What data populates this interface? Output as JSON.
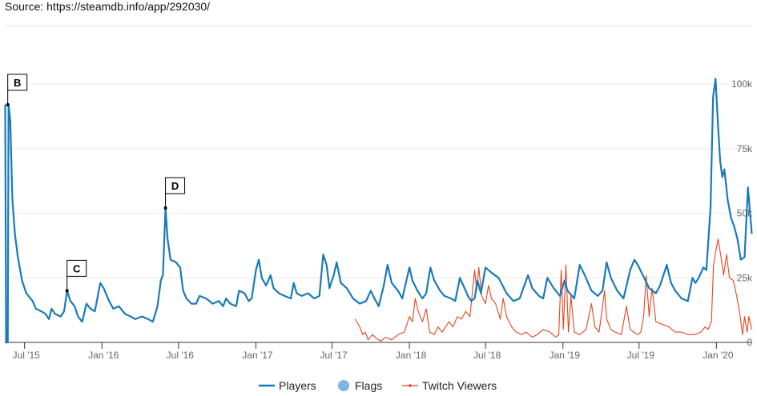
{
  "source": "Source: https://steamdb.info/app/292030/",
  "chart_data": {
    "type": "line",
    "title": "",
    "xlabel": "",
    "ylabel": "",
    "x_ticks": [
      "Jul '15",
      "Jan '16",
      "Jul '16",
      "Jan '17",
      "Jul '17",
      "Jan '18",
      "Jul '18",
      "Jan '19",
      "Jul '19",
      "Jan '20"
    ],
    "y_ticks": [
      "0",
      "25k",
      "50k",
      "75k",
      "100k"
    ],
    "ylim": [
      0,
      100000
    ],
    "grid": "horizontal",
    "legend_position": "bottom",
    "legend": [
      "Players",
      "Flags",
      "Twitch Viewers"
    ],
    "colors": {
      "players": "#1a7ab8",
      "flags": "#7cb5ec",
      "twitch": "#e8431f"
    },
    "flags": [
      {
        "label": "B",
        "x": "2015-05-22",
        "y": 92000
      },
      {
        "label": "C",
        "x": "2015-10-10",
        "y": 20000
      },
      {
        "label": "D",
        "x": "2016-05-31",
        "y": 52000
      }
    ],
    "series": [
      {
        "name": "Players",
        "points": [
          [
            "2015-05-16",
            92000
          ],
          [
            "2015-05-18",
            0
          ],
          [
            "2015-05-22",
            0
          ],
          [
            "2015-05-24",
            92000
          ],
          [
            "2015-05-28",
            86000
          ],
          [
            "2015-06-02",
            55000
          ],
          [
            "2015-06-08",
            42000
          ],
          [
            "2015-06-15",
            33000
          ],
          [
            "2015-06-25",
            24000
          ],
          [
            "2015-07-05",
            19000
          ],
          [
            "2015-07-20",
            16000
          ],
          [
            "2015-07-28",
            13000
          ],
          [
            "2015-08-10",
            12000
          ],
          [
            "2015-08-20",
            11000
          ],
          [
            "2015-08-28",
            9000
          ],
          [
            "2015-09-03",
            13000
          ],
          [
            "2015-09-12",
            11000
          ],
          [
            "2015-09-25",
            10000
          ],
          [
            "2015-10-03",
            12000
          ],
          [
            "2015-10-10",
            20000
          ],
          [
            "2015-10-18",
            16000
          ],
          [
            "2015-10-28",
            14000
          ],
          [
            "2015-11-05",
            10000
          ],
          [
            "2015-11-15",
            8000
          ],
          [
            "2015-11-25",
            15000
          ],
          [
            "2015-12-05",
            13000
          ],
          [
            "2015-12-15",
            12000
          ],
          [
            "2015-12-28",
            23000
          ],
          [
            "2016-01-05",
            21000
          ],
          [
            "2016-01-18",
            16000
          ],
          [
            "2016-01-28",
            13000
          ],
          [
            "2016-02-10",
            14000
          ],
          [
            "2016-02-25",
            11000
          ],
          [
            "2016-03-10",
            10000
          ],
          [
            "2016-03-20",
            9000
          ],
          [
            "2016-04-05",
            10000
          ],
          [
            "2016-04-20",
            9000
          ],
          [
            "2016-05-01",
            8000
          ],
          [
            "2016-05-12",
            14000
          ],
          [
            "2016-05-20",
            24000
          ],
          [
            "2016-05-25",
            26000
          ],
          [
            "2016-05-31",
            52000
          ],
          [
            "2016-06-05",
            40000
          ],
          [
            "2016-06-12",
            32000
          ],
          [
            "2016-06-25",
            31000
          ],
          [
            "2016-07-05",
            29000
          ],
          [
            "2016-07-12",
            20000
          ],
          [
            "2016-07-20",
            17000
          ],
          [
            "2016-08-01",
            15000
          ],
          [
            "2016-08-12",
            15000
          ],
          [
            "2016-08-20",
            18000
          ],
          [
            "2016-09-05",
            17000
          ],
          [
            "2016-09-20",
            15000
          ],
          [
            "2016-10-05",
            16000
          ],
          [
            "2016-10-15",
            14000
          ],
          [
            "2016-10-22",
            17000
          ],
          [
            "2016-11-01",
            15000
          ],
          [
            "2016-11-15",
            14000
          ],
          [
            "2016-11-22",
            20000
          ],
          [
            "2016-12-05",
            19000
          ],
          [
            "2016-12-15",
            16000
          ],
          [
            "2016-12-22",
            17000
          ],
          [
            "2017-01-01",
            28000
          ],
          [
            "2017-01-08",
            32000
          ],
          [
            "2017-01-15",
            25000
          ],
          [
            "2017-01-25",
            22000
          ],
          [
            "2017-02-05",
            26000
          ],
          [
            "2017-02-12",
            21000
          ],
          [
            "2017-02-25",
            19000
          ],
          [
            "2017-03-10",
            18000
          ],
          [
            "2017-03-25",
            17000
          ],
          [
            "2017-04-01",
            23000
          ],
          [
            "2017-04-08",
            19000
          ],
          [
            "2017-04-20",
            18000
          ],
          [
            "2017-05-05",
            19000
          ],
          [
            "2017-05-20",
            17000
          ],
          [
            "2017-06-01",
            18000
          ],
          [
            "2017-06-10",
            34000
          ],
          [
            "2017-06-18",
            30000
          ],
          [
            "2017-06-25",
            21000
          ],
          [
            "2017-07-05",
            26000
          ],
          [
            "2017-07-12",
            31000
          ],
          [
            "2017-07-22",
            23000
          ],
          [
            "2017-08-05",
            21000
          ],
          [
            "2017-08-20",
            17000
          ],
          [
            "2017-09-05",
            15000
          ],
          [
            "2017-09-20",
            16000
          ],
          [
            "2017-10-01",
            20000
          ],
          [
            "2017-10-10",
            17000
          ],
          [
            "2017-10-20",
            14000
          ],
          [
            "2017-11-01",
            22000
          ],
          [
            "2017-11-10",
            30000
          ],
          [
            "2017-11-20",
            23000
          ],
          [
            "2017-12-05",
            20000
          ],
          [
            "2017-12-15",
            17000
          ],
          [
            "2018-01-01",
            29000
          ],
          [
            "2018-01-08",
            24000
          ],
          [
            "2018-01-20",
            20000
          ],
          [
            "2018-02-01",
            17000
          ],
          [
            "2018-02-10",
            19000
          ],
          [
            "2018-02-20",
            29000
          ],
          [
            "2018-03-01",
            24000
          ],
          [
            "2018-03-15",
            20000
          ],
          [
            "2018-03-25",
            18000
          ],
          [
            "2018-04-10",
            17000
          ],
          [
            "2018-04-20",
            16000
          ],
          [
            "2018-05-01",
            25000
          ],
          [
            "2018-05-12",
            21000
          ],
          [
            "2018-05-20",
            18000
          ],
          [
            "2018-05-28",
            16000
          ],
          [
            "2018-06-05",
            17000
          ],
          [
            "2018-06-12",
            24000
          ],
          [
            "2018-06-20",
            19000
          ],
          [
            "2018-07-01",
            29000
          ],
          [
            "2018-07-15",
            27000
          ],
          [
            "2018-08-01",
            25000
          ],
          [
            "2018-08-20",
            19000
          ],
          [
            "2018-09-05",
            16000
          ],
          [
            "2018-09-20",
            17000
          ],
          [
            "2018-10-10",
            26000
          ],
          [
            "2018-10-20",
            21000
          ],
          [
            "2018-11-05",
            18000
          ],
          [
            "2018-11-15",
            17000
          ],
          [
            "2018-11-25",
            25000
          ],
          [
            "2018-12-10",
            21000
          ],
          [
            "2018-12-25",
            18000
          ],
          [
            "2019-01-05",
            24000
          ],
          [
            "2019-01-12",
            20000
          ],
          [
            "2019-01-28",
            17000
          ],
          [
            "2019-02-10",
            30000
          ],
          [
            "2019-02-22",
            26000
          ],
          [
            "2019-03-10",
            20000
          ],
          [
            "2019-03-25",
            18000
          ],
          [
            "2019-04-05",
            20000
          ],
          [
            "2019-04-15",
            31000
          ],
          [
            "2019-04-25",
            25000
          ],
          [
            "2019-05-10",
            20000
          ],
          [
            "2019-05-25",
            17000
          ],
          [
            "2019-06-10",
            28000
          ],
          [
            "2019-06-20",
            32000
          ],
          [
            "2019-06-28",
            30000
          ],
          [
            "2019-07-10",
            26000
          ],
          [
            "2019-07-25",
            21000
          ],
          [
            "2019-08-10",
            19000
          ],
          [
            "2019-08-20",
            22000
          ],
          [
            "2019-09-05",
            30000
          ],
          [
            "2019-09-15",
            23000
          ],
          [
            "2019-09-25",
            20000
          ],
          [
            "2019-10-10",
            17000
          ],
          [
            "2019-10-25",
            16000
          ],
          [
            "2019-11-05",
            25000
          ],
          [
            "2019-11-12",
            23000
          ],
          [
            "2019-11-20",
            25000
          ],
          [
            "2019-12-01",
            29000
          ],
          [
            "2019-12-08",
            28000
          ],
          [
            "2019-12-18",
            52000
          ],
          [
            "2019-12-24",
            95000
          ],
          [
            "2019-12-30",
            102000
          ],
          [
            "2020-01-05",
            83000
          ],
          [
            "2020-01-10",
            70000
          ],
          [
            "2020-01-15",
            64000
          ],
          [
            "2020-01-20",
            67000
          ],
          [
            "2020-01-28",
            55000
          ],
          [
            "2020-02-05",
            48000
          ],
          [
            "2020-02-12",
            45000
          ],
          [
            "2020-02-20",
            40000
          ],
          [
            "2020-02-28",
            32000
          ],
          [
            "2020-03-08",
            33000
          ],
          [
            "2020-03-16",
            60000
          ],
          [
            "2020-03-25",
            42000
          ]
        ]
      },
      {
        "name": "Twitch Viewers",
        "points": [
          [
            "2017-08-25",
            9000
          ],
          [
            "2017-09-05",
            6000
          ],
          [
            "2017-09-12",
            3000
          ],
          [
            "2017-09-18",
            4000
          ],
          [
            "2017-09-25",
            1000
          ],
          [
            "2017-10-05",
            3000
          ],
          [
            "2017-10-15",
            1500
          ],
          [
            "2017-10-25",
            500
          ],
          [
            "2017-11-05",
            2000
          ],
          [
            "2017-11-20",
            1000
          ],
          [
            "2017-12-05",
            3000
          ],
          [
            "2017-12-20",
            4000
          ],
          [
            "2018-01-01",
            10000
          ],
          [
            "2018-01-08",
            8000
          ],
          [
            "2018-01-15",
            17000
          ],
          [
            "2018-01-22",
            12000
          ],
          [
            "2018-02-01",
            8000
          ],
          [
            "2018-02-10",
            13000
          ],
          [
            "2018-02-18",
            4000
          ],
          [
            "2018-03-01",
            3000
          ],
          [
            "2018-03-10",
            6000
          ],
          [
            "2018-03-20",
            4000
          ],
          [
            "2018-04-05",
            8000
          ],
          [
            "2018-04-15",
            6000
          ],
          [
            "2018-04-25",
            10000
          ],
          [
            "2018-05-05",
            9000
          ],
          [
            "2018-05-15",
            12000
          ],
          [
            "2018-05-25",
            10000
          ],
          [
            "2018-06-05",
            28000
          ],
          [
            "2018-06-10",
            20000
          ],
          [
            "2018-06-15",
            29000
          ],
          [
            "2018-06-22",
            18000
          ],
          [
            "2018-07-01",
            15000
          ],
          [
            "2018-07-08",
            22000
          ],
          [
            "2018-07-15",
            17000
          ],
          [
            "2018-07-25",
            15000
          ],
          [
            "2018-08-05",
            9000
          ],
          [
            "2018-08-12",
            17000
          ],
          [
            "2018-08-20",
            10000
          ],
          [
            "2018-09-01",
            6000
          ],
          [
            "2018-09-12",
            4000
          ],
          [
            "2018-09-25",
            3000
          ],
          [
            "2018-10-05",
            4000
          ],
          [
            "2018-10-20",
            2000
          ],
          [
            "2018-11-01",
            3000
          ],
          [
            "2018-11-15",
            5000
          ],
          [
            "2018-12-01",
            4000
          ],
          [
            "2018-12-15",
            2000
          ],
          [
            "2018-12-22",
            3000
          ],
          [
            "2018-12-28",
            28000
          ],
          [
            "2019-01-02",
            5000
          ],
          [
            "2019-01-08",
            30000
          ],
          [
            "2019-01-14",
            4000
          ],
          [
            "2019-01-20",
            18000
          ],
          [
            "2019-01-28",
            4000
          ],
          [
            "2019-02-10",
            3000
          ],
          [
            "2019-02-25",
            5000
          ],
          [
            "2019-03-10",
            15000
          ],
          [
            "2019-03-18",
            6000
          ],
          [
            "2019-03-28",
            4000
          ],
          [
            "2019-04-10",
            20000
          ],
          [
            "2019-04-15",
            9000
          ],
          [
            "2019-04-25",
            5000
          ],
          [
            "2019-05-05",
            4000
          ],
          [
            "2019-05-20",
            3000
          ],
          [
            "2019-06-01",
            14000
          ],
          [
            "2019-06-10",
            5000
          ],
          [
            "2019-06-18",
            4000
          ],
          [
            "2019-06-28",
            3000
          ],
          [
            "2019-07-05",
            4000
          ],
          [
            "2019-07-12",
            10000
          ],
          [
            "2019-07-18",
            26000
          ],
          [
            "2019-07-25",
            10000
          ],
          [
            "2019-08-01",
            21000
          ],
          [
            "2019-08-10",
            8000
          ],
          [
            "2019-08-25",
            7000
          ],
          [
            "2019-09-10",
            6000
          ],
          [
            "2019-09-25",
            4000
          ],
          [
            "2019-10-10",
            4000
          ],
          [
            "2019-10-25",
            3000
          ],
          [
            "2019-11-10",
            3000
          ],
          [
            "2019-11-25",
            4000
          ],
          [
            "2019-12-05",
            6000
          ],
          [
            "2019-12-12",
            5000
          ],
          [
            "2019-12-20",
            8000
          ],
          [
            "2019-12-25",
            30000
          ],
          [
            "2019-12-30",
            35000
          ],
          [
            "2020-01-05",
            40000
          ],
          [
            "2020-01-12",
            33000
          ],
          [
            "2020-01-18",
            26000
          ],
          [
            "2020-01-25",
            34000
          ],
          [
            "2020-02-01",
            25000
          ],
          [
            "2020-02-10",
            24000
          ],
          [
            "2020-02-18",
            18000
          ],
          [
            "2020-02-25",
            12000
          ],
          [
            "2020-03-03",
            3000
          ],
          [
            "2020-03-08",
            10000
          ],
          [
            "2020-03-14",
            4000
          ],
          [
            "2020-03-18",
            10000
          ],
          [
            "2020-03-25",
            5000
          ]
        ]
      }
    ]
  }
}
